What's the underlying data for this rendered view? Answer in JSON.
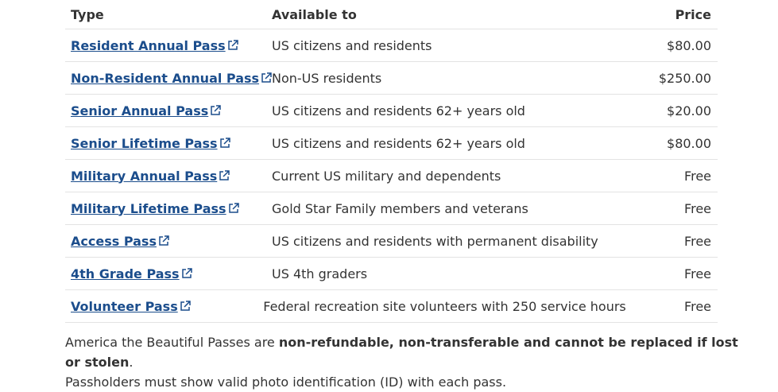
{
  "table": {
    "headers": [
      "Type",
      "Available to",
      "Price"
    ],
    "rows": [
      [
        "Resident Annual Pass",
        "US citizens and residents",
        "$80.00"
      ],
      [
        "Non-Resident Annual Pass",
        "Non-US residents",
        "$250.00"
      ],
      [
        "Senior Annual Pass",
        "US citizens and residents 62+ years old",
        "$20.00"
      ],
      [
        "Senior Lifetime Pass",
        "US citizens and residents 62+ years old",
        "$80.00"
      ],
      [
        "Military Annual Pass",
        "Current US military and dependents",
        "Free"
      ],
      [
        "Military Lifetime Pass",
        "Gold Star Family members and veterans",
        "Free"
      ],
      [
        "Access Pass",
        "US citizens and residents with permanent disability",
        "Free"
      ],
      [
        "4th Grade Pass",
        "US 4th graders",
        "Free"
      ],
      [
        "Volunteer Pass",
        "Federal recreation site volunteers with 250 service hours",
        "Free"
      ]
    ]
  },
  "footnote": {
    "lead": "America the Beautiful Passes are",
    "bold": "non-refundable, non-transferable and cannot be replaced if lost or stolen",
    "end": ".",
    "second": "Passholders must show valid photo identification (ID) with each pass."
  }
}
